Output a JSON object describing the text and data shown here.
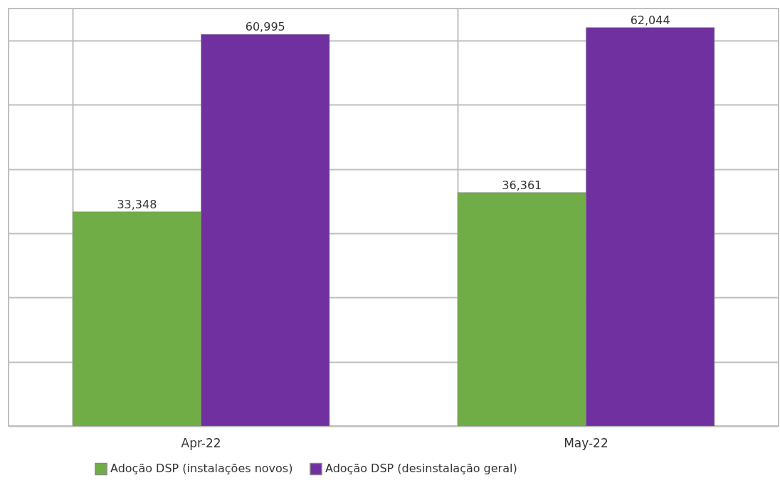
{
  "chart_data": {
    "type": "bar",
    "categories": [
      "Apr-22",
      "May-22"
    ],
    "series": [
      {
        "name": "Adoção DSP (instalações novos)",
        "color": "#70ad47",
        "values": [
          33348,
          36361
        ],
        "value_labels": [
          "33,348",
          "36,361"
        ]
      },
      {
        "name": "Adoção DSP (desinstalação geral)",
        "color": "#7030a0",
        "values": [
          60995,
          62044
        ],
        "value_labels": [
          "60,995",
          "62,044"
        ]
      }
    ],
    "tick_labels": "x",
    "grid": true,
    "legend": "bottom"
  }
}
